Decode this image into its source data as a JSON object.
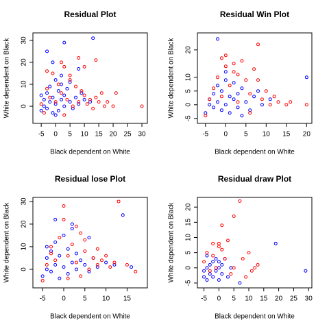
{
  "chart_data": [
    {
      "type": "scatter",
      "title": "Residual Plot",
      "x_label": "Black dependent on White",
      "y_label": "White dependent on Black",
      "xlim": [
        -7.9,
        31.9
      ],
      "ylim": [
        -7.8,
        33.4
      ],
      "xticks": [
        -5,
        0,
        5,
        10,
        15,
        20,
        25,
        30
      ],
      "yticks": [
        0,
        10,
        20,
        30
      ],
      "series": [
        {
          "color": "#0000ff",
          "x": [
            -5,
            -4,
            -4,
            -3,
            -3,
            -2,
            -2,
            -1,
            -1,
            0,
            0,
            1,
            1,
            2,
            2,
            3,
            3,
            4,
            5,
            6,
            7,
            8,
            9,
            10,
            12,
            -3,
            3,
            13,
            8,
            -1,
            0,
            2,
            -5,
            5
          ],
          "values": [
            -2,
            0,
            3,
            -1,
            6,
            2,
            9,
            -3,
            4,
            1,
            12,
            -2,
            7,
            3,
            14,
            0,
            5,
            8,
            2,
            -1,
            4,
            1,
            6,
            3,
            2,
            25,
            29,
            31,
            17,
            20,
            -4,
            10,
            5,
            11
          ]
        },
        {
          "color": "#ff0000",
          "x": [
            -5,
            -4,
            -3,
            -2,
            -1,
            0,
            1,
            2,
            3,
            4,
            5,
            6,
            7,
            8,
            9,
            10,
            11,
            12,
            13,
            14,
            15,
            16,
            17,
            18,
            20,
            21,
            30,
            8,
            14,
            10,
            -3,
            2,
            5,
            3
          ],
          "values": [
            1,
            -3,
            8,
            4,
            15,
            2,
            10,
            6,
            18,
            3,
            12,
            0,
            9,
            2,
            7,
            5,
            1,
            3,
            -1,
            21,
            2,
            6,
            0,
            2,
            0,
            6,
            0,
            22,
            4,
            18,
            16,
            20,
            14,
            -4
          ]
        }
      ]
    },
    {
      "type": "scatter",
      "title": "Residual Win Plot",
      "x_label": "Black dependent on White",
      "y_label": "White dependent on Black",
      "xlim": [
        -7,
        21.3
      ],
      "ylim": [
        -6.8,
        26.2
      ],
      "xticks": [
        -5,
        0,
        5,
        10,
        15,
        20
      ],
      "yticks": [
        -5,
        0,
        5,
        10,
        20
      ],
      "series": [
        {
          "color": "#0000ff",
          "x": [
            -5,
            -4,
            -4,
            -3,
            -3,
            -2,
            -2,
            -1,
            -1,
            0,
            0,
            1,
            1,
            2,
            2,
            3,
            3,
            4,
            5,
            6,
            7,
            9,
            11,
            20,
            -2,
            0,
            4,
            8
          ],
          "values": [
            -3,
            0,
            2,
            -1,
            4,
            1,
            7,
            -2,
            5,
            0,
            9,
            -3,
            3,
            2,
            8,
            -1,
            4,
            6,
            1,
            -2,
            3,
            0,
            2,
            10,
            24,
            12,
            -4,
            5
          ]
        },
        {
          "color": "#ff0000",
          "x": [
            -5,
            -4,
            -3,
            -2,
            -1,
            0,
            1,
            2,
            3,
            4,
            5,
            6,
            7,
            8,
            9,
            10,
            11,
            12,
            13,
            15,
            16,
            20,
            8,
            -1,
            3,
            0,
            6,
            2
          ],
          "values": [
            -4,
            2,
            6,
            10,
            3,
            14,
            7,
            12,
            1,
            16,
            9,
            4,
            13,
            22,
            2,
            5,
            0,
            3,
            1,
            0,
            1,
            0,
            9,
            17,
            11,
            18,
            -3,
            15
          ]
        }
      ]
    },
    {
      "type": "scatter",
      "title": "Residual lose Plot",
      "x_label": "Black dependent on White",
      "y_label": "White dependent on Black",
      "xlim": [
        -7.3,
        19.8
      ],
      "ylim": [
        -8.2,
        31.8
      ],
      "xticks": [
        -5,
        0,
        5,
        10,
        15
      ],
      "yticks": [
        0,
        10,
        20,
        30
      ],
      "series": [
        {
          "color": "#0000ff",
          "x": [
            -5,
            -4,
            -4,
            -3,
            -3,
            -2,
            -2,
            -1,
            -1,
            0,
            0,
            1,
            1,
            2,
            2,
            3,
            3,
            4,
            5,
            6,
            7,
            8,
            10,
            12,
            14,
            16,
            -2,
            2,
            6,
            -4
          ],
          "values": [
            -3,
            0,
            5,
            -1,
            8,
            2,
            12,
            -4,
            6,
            1,
            15,
            -2,
            9,
            3,
            18,
            0,
            7,
            4,
            2,
            -1,
            5,
            1,
            3,
            2,
            24,
            1,
            22,
            20,
            14,
            10
          ]
        },
        {
          "color": "#ff0000",
          "x": [
            -5,
            -4,
            -3,
            -2,
            -1,
            0,
            1,
            2,
            3,
            4,
            5,
            6,
            7,
            8,
            9,
            10,
            11,
            12,
            13,
            15,
            17,
            0,
            3,
            5,
            1,
            -3,
            8,
            4
          ],
          "values": [
            -5,
            2,
            10,
            4,
            14,
            28,
            6,
            11,
            3,
            16,
            8,
            0,
            5,
            2,
            4,
            6,
            1,
            3,
            30,
            2,
            -1,
            22,
            19,
            13,
            -4,
            7,
            9,
            -3
          ]
        }
      ]
    },
    {
      "type": "scatter",
      "title": "Residual draw Plot",
      "x_label": "Black dependent on White",
      "y_label": "White dependent on Black",
      "xlim": [
        -7.2,
        31.1
      ],
      "ylim": [
        -6.6,
        23.2
      ],
      "xticks": [
        -5,
        0,
        5,
        10,
        15,
        20,
        25,
        30
      ],
      "yticks": [
        -5,
        0,
        5,
        10,
        15,
        20
      ],
      "series": [
        {
          "color": "#0000ff",
          "x": [
            -5,
            -5,
            -4,
            -4,
            -3,
            -3,
            -2,
            -2,
            -1,
            -1,
            0,
            0,
            1,
            1,
            2,
            3,
            4,
            7,
            19,
            29,
            -4,
            0
          ],
          "values": [
            -3,
            -1,
            -4,
            0,
            -2,
            1,
            -3,
            2,
            -1,
            3,
            0,
            2,
            -2,
            1,
            3,
            -3,
            0,
            -5,
            8,
            -1,
            4,
            -4
          ]
        },
        {
          "color": "#ff0000",
          "x": [
            -5,
            -4,
            -3,
            -2,
            -1,
            0,
            1,
            2,
            3,
            4,
            5,
            7,
            8,
            10,
            11,
            12,
            13,
            1,
            -2,
            0,
            5,
            9
          ],
          "values": [
            2,
            5,
            -1,
            8,
            0,
            7,
            14,
            3,
            9,
            -2,
            17,
            22,
            3,
            5,
            -1,
            0,
            1,
            6,
            4,
            8,
            0,
            -3
          ]
        }
      ]
    }
  ]
}
